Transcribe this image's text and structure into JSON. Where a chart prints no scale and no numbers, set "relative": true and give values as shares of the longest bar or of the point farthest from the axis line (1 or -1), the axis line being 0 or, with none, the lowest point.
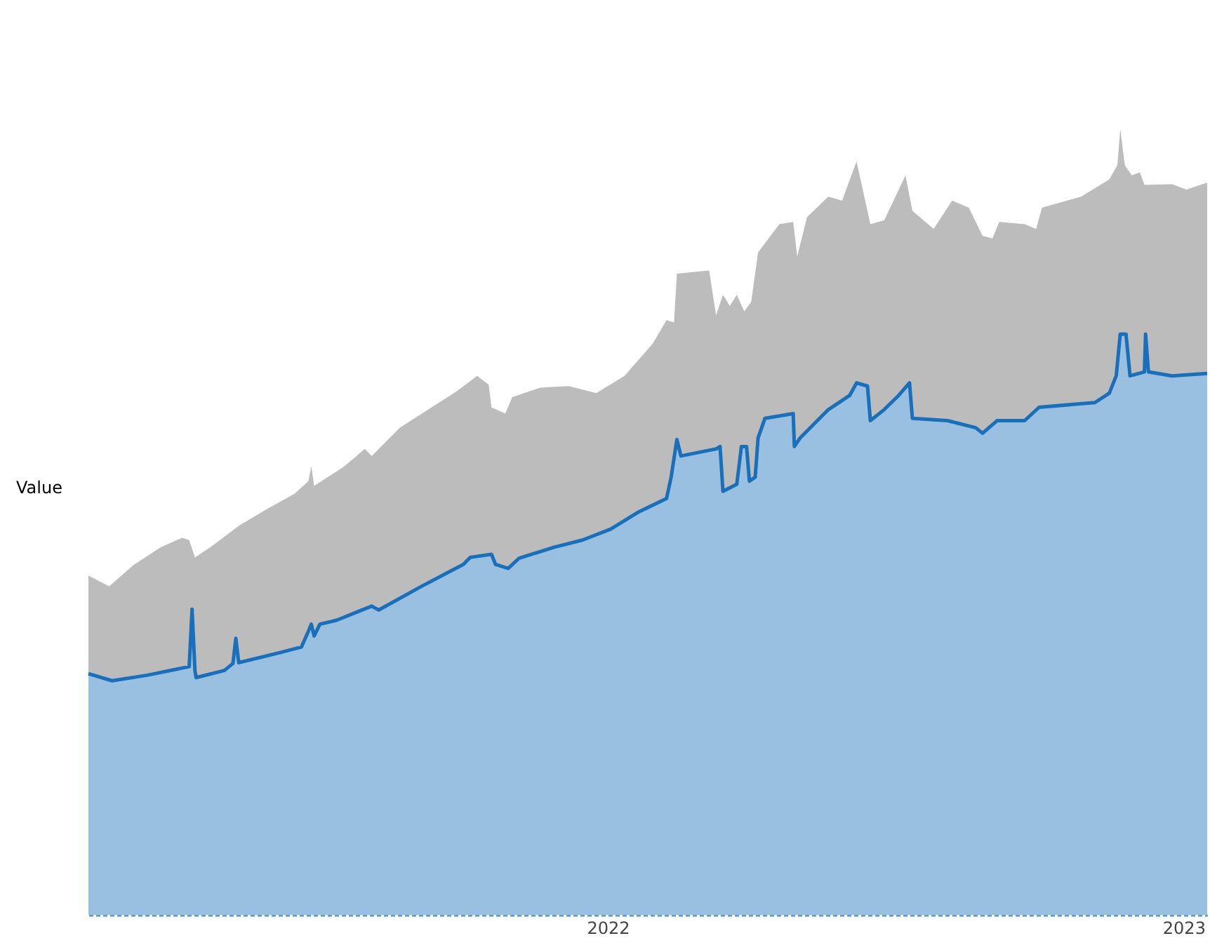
{
  "chart_data": {
    "type": "area",
    "ylabel": "Value",
    "relative": true,
    "xlim": [
      2021.098,
      2023.041
    ],
    "xticks": [
      2022,
      2023
    ],
    "series": [
      {
        "color": "#bcbcbc",
        "x": [
          2021.098,
          2021.134,
          2021.176,
          2021.224,
          2021.261,
          2021.273,
          2021.283,
          2021.31,
          2021.359,
          2021.407,
          2021.456,
          2021.48,
          2021.485,
          2021.49,
          2021.541,
          2021.578,
          2021.59,
          2021.639,
          2021.688,
          2021.737,
          2021.773,
          2021.793,
          2021.798,
          2021.822,
          2021.834,
          2021.883,
          2021.932,
          2021.98,
          2022.029,
          2022.078,
          2022.102,
          2022.115,
          2022.12,
          2022.176,
          2022.188,
          2022.2,
          2022.212,
          2022.224,
          2022.237,
          2022.249,
          2022.261,
          2022.298,
          2022.322,
          2022.329,
          2022.346,
          2022.383,
          2022.407,
          2022.432,
          2022.456,
          2022.48,
          2022.517,
          2022.529,
          2022.566,
          2022.598,
          2022.627,
          2022.651,
          2022.668,
          2022.68,
          2022.724,
          2022.744,
          2022.754,
          2022.822,
          2022.871,
          2022.885,
          2022.89,
          2022.898,
          2022.91,
          2022.924,
          2022.932,
          2022.98,
          2023.005,
          2023.041
        ],
        "values": [
          0.432,
          0.418,
          0.445,
          0.468,
          0.48,
          0.477,
          0.455,
          0.468,
          0.495,
          0.516,
          0.536,
          0.552,
          0.571,
          0.546,
          0.57,
          0.593,
          0.584,
          0.62,
          0.643,
          0.666,
          0.686,
          0.675,
          0.646,
          0.638,
          0.659,
          0.671,
          0.673,
          0.664,
          0.686,
          0.727,
          0.757,
          0.754,
          0.816,
          0.82,
          0.763,
          0.789,
          0.775,
          0.789,
          0.768,
          0.78,
          0.843,
          0.879,
          0.882,
          0.838,
          0.888,
          0.914,
          0.909,
          0.959,
          0.879,
          0.884,
          0.941,
          0.896,
          0.873,
          0.909,
          0.9,
          0.864,
          0.861,
          0.882,
          0.879,
          0.873,
          0.9,
          0.914,
          0.936,
          0.954,
          1.0,
          0.954,
          0.941,
          0.945,
          0.929,
          0.93,
          0.923,
          0.932
        ]
      },
      {
        "color": "#1a6fba",
        "line_style": "solid",
        "x": [
          2021.098,
          2021.139,
          2021.2,
          2021.273,
          2021.278,
          2021.283,
          2021.285,
          2021.334,
          2021.349,
          2021.354,
          2021.359,
          2021.432,
          2021.468,
          2021.48,
          2021.485,
          2021.49,
          2021.5,
          2021.529,
          2021.59,
          2021.602,
          2021.676,
          2021.749,
          2021.761,
          2021.798,
          2021.805,
          2021.827,
          2021.846,
          2021.907,
          2021.956,
          2022.005,
          2022.054,
          2022.102,
          2022.11,
          2022.12,
          2022.127,
          2022.188,
          2022.195,
          2022.2,
          2022.224,
          2022.232,
          2022.241,
          2022.246,
          2022.256,
          2022.261,
          2022.273,
          2022.322,
          2022.324,
          2022.334,
          2022.383,
          2022.42,
          2022.432,
          2022.451,
          2022.456,
          2022.48,
          2022.505,
          2022.524,
          2022.529,
          2022.59,
          2022.639,
          2022.651,
          2022.676,
          2022.724,
          2022.749,
          2022.846,
          2022.871,
          2022.883,
          2022.89,
          2022.9,
          2022.907,
          2022.932,
          2022.934,
          2022.939,
          2022.98,
          2023.041
        ],
        "values": [
          0.307,
          0.298,
          0.305,
          0.316,
          0.389,
          0.311,
          0.302,
          0.311,
          0.32,
          0.352,
          0.321,
          0.334,
          0.341,
          0.361,
          0.37,
          0.355,
          0.37,
          0.375,
          0.393,
          0.388,
          0.418,
          0.446,
          0.455,
          0.459,
          0.446,
          0.441,
          0.454,
          0.468,
          0.477,
          0.491,
          0.513,
          0.53,
          0.557,
          0.605,
          0.584,
          0.593,
          0.596,
          0.539,
          0.548,
          0.596,
          0.596,
          0.552,
          0.557,
          0.607,
          0.632,
          0.638,
          0.596,
          0.607,
          0.643,
          0.661,
          0.677,
          0.673,
          0.629,
          0.643,
          0.661,
          0.677,
          0.632,
          0.629,
          0.62,
          0.613,
          0.629,
          0.629,
          0.646,
          0.652,
          0.664,
          0.686,
          0.739,
          0.739,
          0.686,
          0.691,
          0.739,
          0.691,
          0.686,
          0.689
        ]
      }
    ]
  }
}
